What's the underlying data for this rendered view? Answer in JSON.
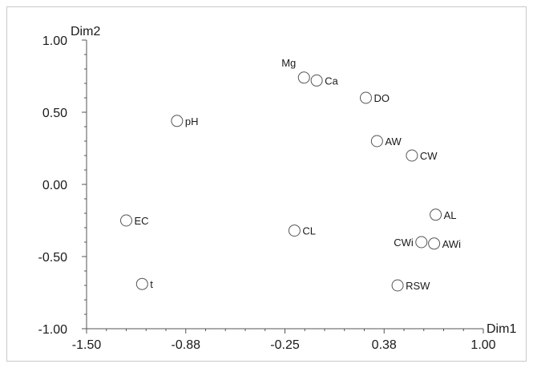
{
  "chart_data": {
    "type": "scatter",
    "xlabel": "Dim1",
    "ylabel": "Dim2",
    "xlim": [
      -1.5,
      1.0
    ],
    "ylim": [
      -1.0,
      1.0
    ],
    "x_ticks": [
      -1.5,
      -0.875,
      -0.25,
      0.375,
      1.0
    ],
    "x_tick_labels": [
      "-1.50",
      "-0.88",
      "-0.25",
      "0.38",
      "1.00"
    ],
    "y_ticks": [
      -1.0,
      -0.5,
      0.0,
      0.5,
      1.0
    ],
    "y_tick_labels": [
      "-1.00",
      "-0.50",
      "0.00",
      "0.50",
      "1.00"
    ],
    "grid": false,
    "points": [
      {
        "label": "Mg",
        "x": -0.13,
        "y": 0.74,
        "label_pos": "above-left"
      },
      {
        "label": "Ca",
        "x": -0.05,
        "y": 0.72,
        "label_pos": "right"
      },
      {
        "label": "DO",
        "x": 0.26,
        "y": 0.6,
        "label_pos": "right"
      },
      {
        "label": "pH",
        "x": -0.93,
        "y": 0.44,
        "label_pos": "right"
      },
      {
        "label": "AW",
        "x": 0.33,
        "y": 0.3,
        "label_pos": "right"
      },
      {
        "label": "CW",
        "x": 0.55,
        "y": 0.2,
        "label_pos": "right"
      },
      {
        "label": "AL",
        "x": 0.7,
        "y": -0.21,
        "label_pos": "right"
      },
      {
        "label": "EC",
        "x": -1.25,
        "y": -0.25,
        "label_pos": "right"
      },
      {
        "label": "CL",
        "x": -0.19,
        "y": -0.32,
        "label_pos": "right"
      },
      {
        "label": "CWi",
        "x": 0.61,
        "y": -0.4,
        "label_pos": "left"
      },
      {
        "label": "AWi",
        "x": 0.69,
        "y": -0.41,
        "label_pos": "right"
      },
      {
        "label": "t",
        "x": -1.15,
        "y": -0.69,
        "label_pos": "right"
      },
      {
        "label": "RSW",
        "x": 0.46,
        "y": -0.7,
        "label_pos": "right"
      }
    ]
  }
}
